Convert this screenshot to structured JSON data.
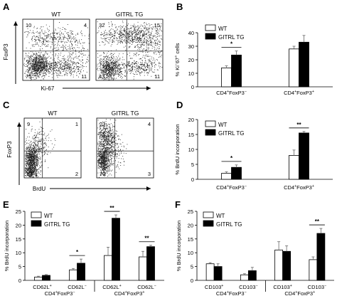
{
  "panels": {
    "A": {
      "letter": "A",
      "ylabel": "FoxP3",
      "xlabel": "Ki-67",
      "plots": [
        {
          "title": "WT",
          "quadrants": {
            "ul": "10",
            "ur": "4",
            "ll": "75",
            "lr": "11"
          }
        },
        {
          "title": "GITRL TG",
          "quadrants": {
            "ul": "32",
            "ur": "15",
            "ll": "43",
            "lr": "11"
          }
        }
      ]
    },
    "C": {
      "letter": "C",
      "ylabel": "FoxP3",
      "xlabel": "BrdU",
      "plots": [
        {
          "title": "WT",
          "quadrants": {
            "ul": "9",
            "ur": "1",
            "ll": "88",
            "lr": "2"
          }
        },
        {
          "title": "GITRL TG",
          "quadrants": {
            "ul": "23",
            "ur": "4",
            "ll": "70",
            "lr": "3"
          }
        }
      ]
    }
  },
  "chart_data": [
    {
      "id": "B",
      "letter": "B",
      "type": "bar",
      "ylabel": "% Ki-67+ cells",
      "ylim": [
        0,
        40
      ],
      "yticks": [
        0,
        10,
        20,
        30,
        40
      ],
      "categories": [
        "CD4+FoxP3-",
        "CD4+FoxP3+"
      ],
      "series": [
        {
          "name": "WT",
          "color": "#ffffff",
          "values": [
            14,
            28
          ],
          "errors": [
            1.5,
            2
          ]
        },
        {
          "name": "GITRL TG",
          "color": "#000000",
          "values": [
            23.5,
            33
          ],
          "errors": [
            3,
            5
          ]
        }
      ],
      "significance": [
        {
          "category": 0,
          "label": "*"
        }
      ],
      "legend": "top-left"
    },
    {
      "id": "D",
      "letter": "D",
      "type": "bar",
      "ylabel": "% BrdU incorporation",
      "ylim": [
        0,
        20
      ],
      "yticks": [
        0,
        5,
        10,
        15,
        20
      ],
      "categories": [
        "CD4+FoxP3-",
        "CD4+FoxP3+"
      ],
      "series": [
        {
          "name": "WT",
          "color": "#ffffff",
          "values": [
            2,
            8
          ],
          "errors": [
            0.5,
            1.8
          ]
        },
        {
          "name": "GITRL TG",
          "color": "#000000",
          "values": [
            4,
            15.5
          ],
          "errors": [
            0.8,
            0.5
          ]
        }
      ],
      "significance": [
        {
          "category": 0,
          "label": "*"
        },
        {
          "category": 1,
          "label": "**"
        }
      ],
      "legend": "top-left"
    },
    {
      "id": "E",
      "letter": "E",
      "type": "bar",
      "ylabel": "% BrdU incorporation",
      "ylim": [
        0,
        25
      ],
      "yticks": [
        0,
        5,
        10,
        15,
        20,
        25
      ],
      "categories": [
        "CD62L+",
        "CD62L-",
        "CD62L+",
        "CD62L-"
      ],
      "groups": [
        "CD4+FoxP3-",
        "CD4+FoxP3+"
      ],
      "series": [
        {
          "name": "WT",
          "color": "#ffffff",
          "values": [
            1.2,
            3.8,
            9,
            8.5
          ],
          "errors": [
            0.3,
            0.5,
            3,
            2
          ]
        },
        {
          "name": "GITRL TG",
          "color": "#000000",
          "values": [
            1.8,
            6.2,
            22.5,
            12.2
          ],
          "errors": [
            0.3,
            1.5,
            1.2,
            0.5
          ]
        }
      ],
      "significance": [
        {
          "category": 1,
          "label": "*"
        },
        {
          "category": 2,
          "label": "**"
        },
        {
          "category": 3,
          "label": "**"
        }
      ],
      "legend": "top-left"
    },
    {
      "id": "F",
      "letter": "F",
      "type": "bar",
      "ylabel": "% BrdU incorporation",
      "ylim": [
        0,
        25
      ],
      "yticks": [
        0,
        5,
        10,
        15,
        20,
        25
      ],
      "categories": [
        "CD103+",
        "CD103-",
        "CD103+",
        "CD103-"
      ],
      "groups": [
        "CD4+FoxP3-",
        "CD4+FoxP3+"
      ],
      "series": [
        {
          "name": "WT",
          "color": "#ffffff",
          "values": [
            6,
            2,
            11,
            7.5
          ],
          "errors": [
            0.4,
            0.4,
            3,
            1
          ]
        },
        {
          "name": "GITRL TG",
          "color": "#000000",
          "values": [
            5,
            3.5,
            10.5,
            17
          ],
          "errors": [
            1,
            1.2,
            2,
            1.8
          ]
        }
      ],
      "significance": [
        {
          "category": 3,
          "label": "**"
        }
      ],
      "legend": "top-left"
    }
  ]
}
